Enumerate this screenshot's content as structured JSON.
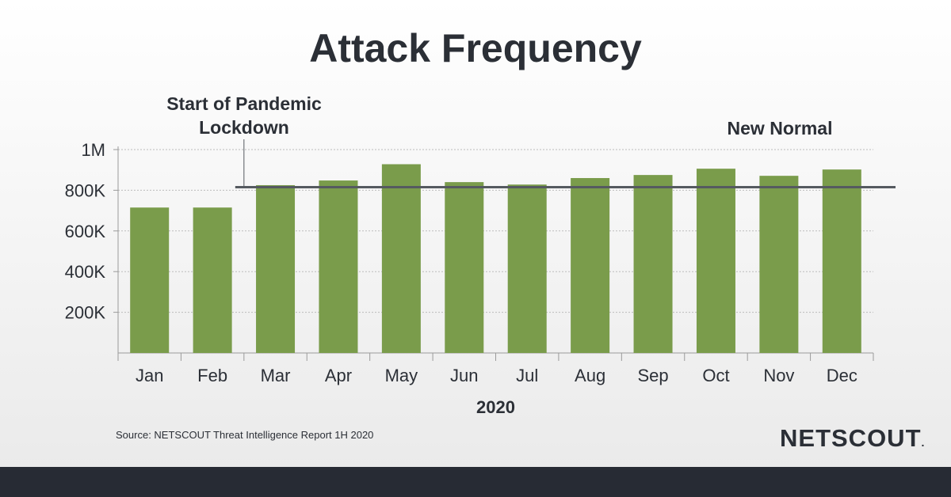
{
  "header": {
    "title": "Attack Frequency"
  },
  "annotations": {
    "pandemic": "Start of Pandemic Lockdown",
    "new_normal": "New Normal"
  },
  "chart_data": {
    "type": "bar",
    "title": "Attack Frequency",
    "xlabel": "2020",
    "ylabel": "",
    "categories": [
      "Jan",
      "Feb",
      "Mar",
      "Apr",
      "May",
      "Jun",
      "Jul",
      "Aug",
      "Sep",
      "Oct",
      "Nov",
      "Dec"
    ],
    "values": [
      715000,
      715000,
      825000,
      848000,
      928000,
      840000,
      828000,
      860000,
      875000,
      906000,
      871000,
      902000
    ],
    "ylim": [
      0,
      1000000
    ],
    "yticks": [
      200000,
      400000,
      600000,
      800000,
      1000000
    ],
    "ytick_labels": [
      "200K",
      "400K",
      "600K",
      "800K",
      "1M"
    ],
    "grid": true,
    "bar_color": "#7a9c4b",
    "reference_line": {
      "value": 815000,
      "from_category": "Mar",
      "color": "#555a60"
    },
    "marker_line": {
      "between": [
        "Feb",
        "Mar"
      ]
    }
  },
  "footer": {
    "source": "Source: NETSCOUT Threat Intelligence Report 1H 2020",
    "brand": "NETSCOUT",
    "brand_mark": "."
  },
  "colors": {
    "accent": "#7a9c4b",
    "text": "#2b2f36",
    "footer_bar": "#272b34"
  }
}
